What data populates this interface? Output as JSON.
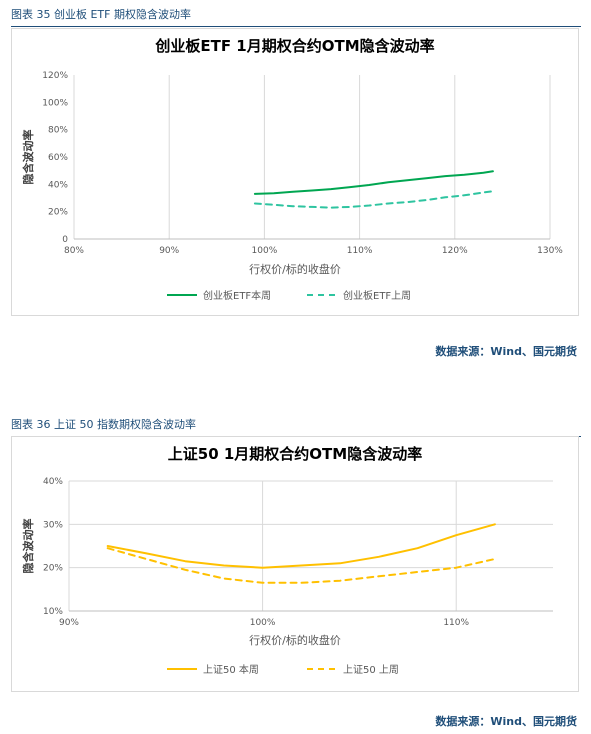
{
  "figures": [
    {
      "caption": "图表 35 创业板 ETF 期权隐含波动率",
      "source": "数据来源：Wind、国元期货",
      "chart_data": {
        "type": "line",
        "title": "创业板ETF 1月期权合约OTM隐含波动率",
        "xlabel": "行权价/标的收盘价",
        "ylabel": "隐含波动率",
        "xlim": [
          0.8,
          1.3
        ],
        "ylim": [
          0,
          1.2
        ],
        "xticks": [
          0.8,
          0.9,
          1.0,
          1.1,
          1.2,
          1.3
        ],
        "xtick_labels": [
          "80%",
          "90%",
          "100%",
          "110%",
          "120%",
          "130%"
        ],
        "yticks": [
          0,
          0.2,
          0.4,
          0.6,
          0.8,
          1.0,
          1.2
        ],
        "ytick_labels": [
          "0",
          "20%",
          "40%",
          "60%",
          "80%",
          "100%",
          "120%"
        ],
        "grid": "vertical",
        "legend_position": "bottom",
        "series": [
          {
            "name": "创业板ETF本周",
            "style": "solid",
            "color": "#00a651",
            "x": [
              0.99,
              1.01,
              1.03,
              1.05,
              1.07,
              1.09,
              1.11,
              1.13,
              1.15,
              1.17,
              1.19,
              1.21,
              1.23,
              1.24
            ],
            "values": [
              0.33,
              0.335,
              0.345,
              0.355,
              0.365,
              0.38,
              0.395,
              0.415,
              0.43,
              0.445,
              0.46,
              0.47,
              0.485,
              0.495
            ]
          },
          {
            "name": "创业板ETF上周",
            "style": "dashed",
            "color": "#2ec4a0",
            "x": [
              0.99,
              1.01,
              1.03,
              1.05,
              1.07,
              1.09,
              1.11,
              1.13,
              1.15,
              1.17,
              1.19,
              1.21,
              1.23,
              1.24
            ],
            "values": [
              0.26,
              0.25,
              0.24,
              0.235,
              0.23,
              0.235,
              0.245,
              0.26,
              0.27,
              0.285,
              0.305,
              0.32,
              0.34,
              0.35
            ]
          }
        ]
      }
    },
    {
      "caption": "图表 36 上证 50 指数期权隐含波动率",
      "source": "数据来源：Wind、国元期货",
      "chart_data": {
        "type": "line",
        "title": "上证50 1月期权合约OTM隐含波动率",
        "xlabel": "行权价/标的收盘价",
        "ylabel": "隐含波动率",
        "xlim": [
          0.9,
          1.15
        ],
        "ylim": [
          0.1,
          0.4
        ],
        "xticks": [
          0.9,
          1.0,
          1.1
        ],
        "xtick_labels": [
          "90%",
          "100%",
          "110%"
        ],
        "yticks": [
          0.1,
          0.2,
          0.3,
          0.4
        ],
        "ytick_labels": [
          "10%",
          "20%",
          "30%",
          "40%"
        ],
        "grid": "both",
        "legend_position": "bottom",
        "series": [
          {
            "name": "上证50 本周",
            "style": "solid",
            "color": "#ffc000",
            "x": [
              0.92,
              0.94,
              0.96,
              0.98,
              1.0,
              1.02,
              1.04,
              1.06,
              1.08,
              1.1,
              1.12
            ],
            "values": [
              0.25,
              0.233,
              0.215,
              0.205,
              0.2,
              0.205,
              0.21,
              0.225,
              0.245,
              0.275,
              0.3
            ]
          },
          {
            "name": "上证50 上周",
            "style": "dashed",
            "color": "#ffc000",
            "x": [
              0.92,
              0.94,
              0.96,
              0.98,
              1.0,
              1.02,
              1.04,
              1.06,
              1.08,
              1.1,
              1.12
            ],
            "values": [
              0.245,
              0.22,
              0.195,
              0.175,
              0.165,
              0.165,
              0.17,
              0.18,
              0.19,
              0.2,
              0.22
            ]
          }
        ]
      }
    }
  ]
}
